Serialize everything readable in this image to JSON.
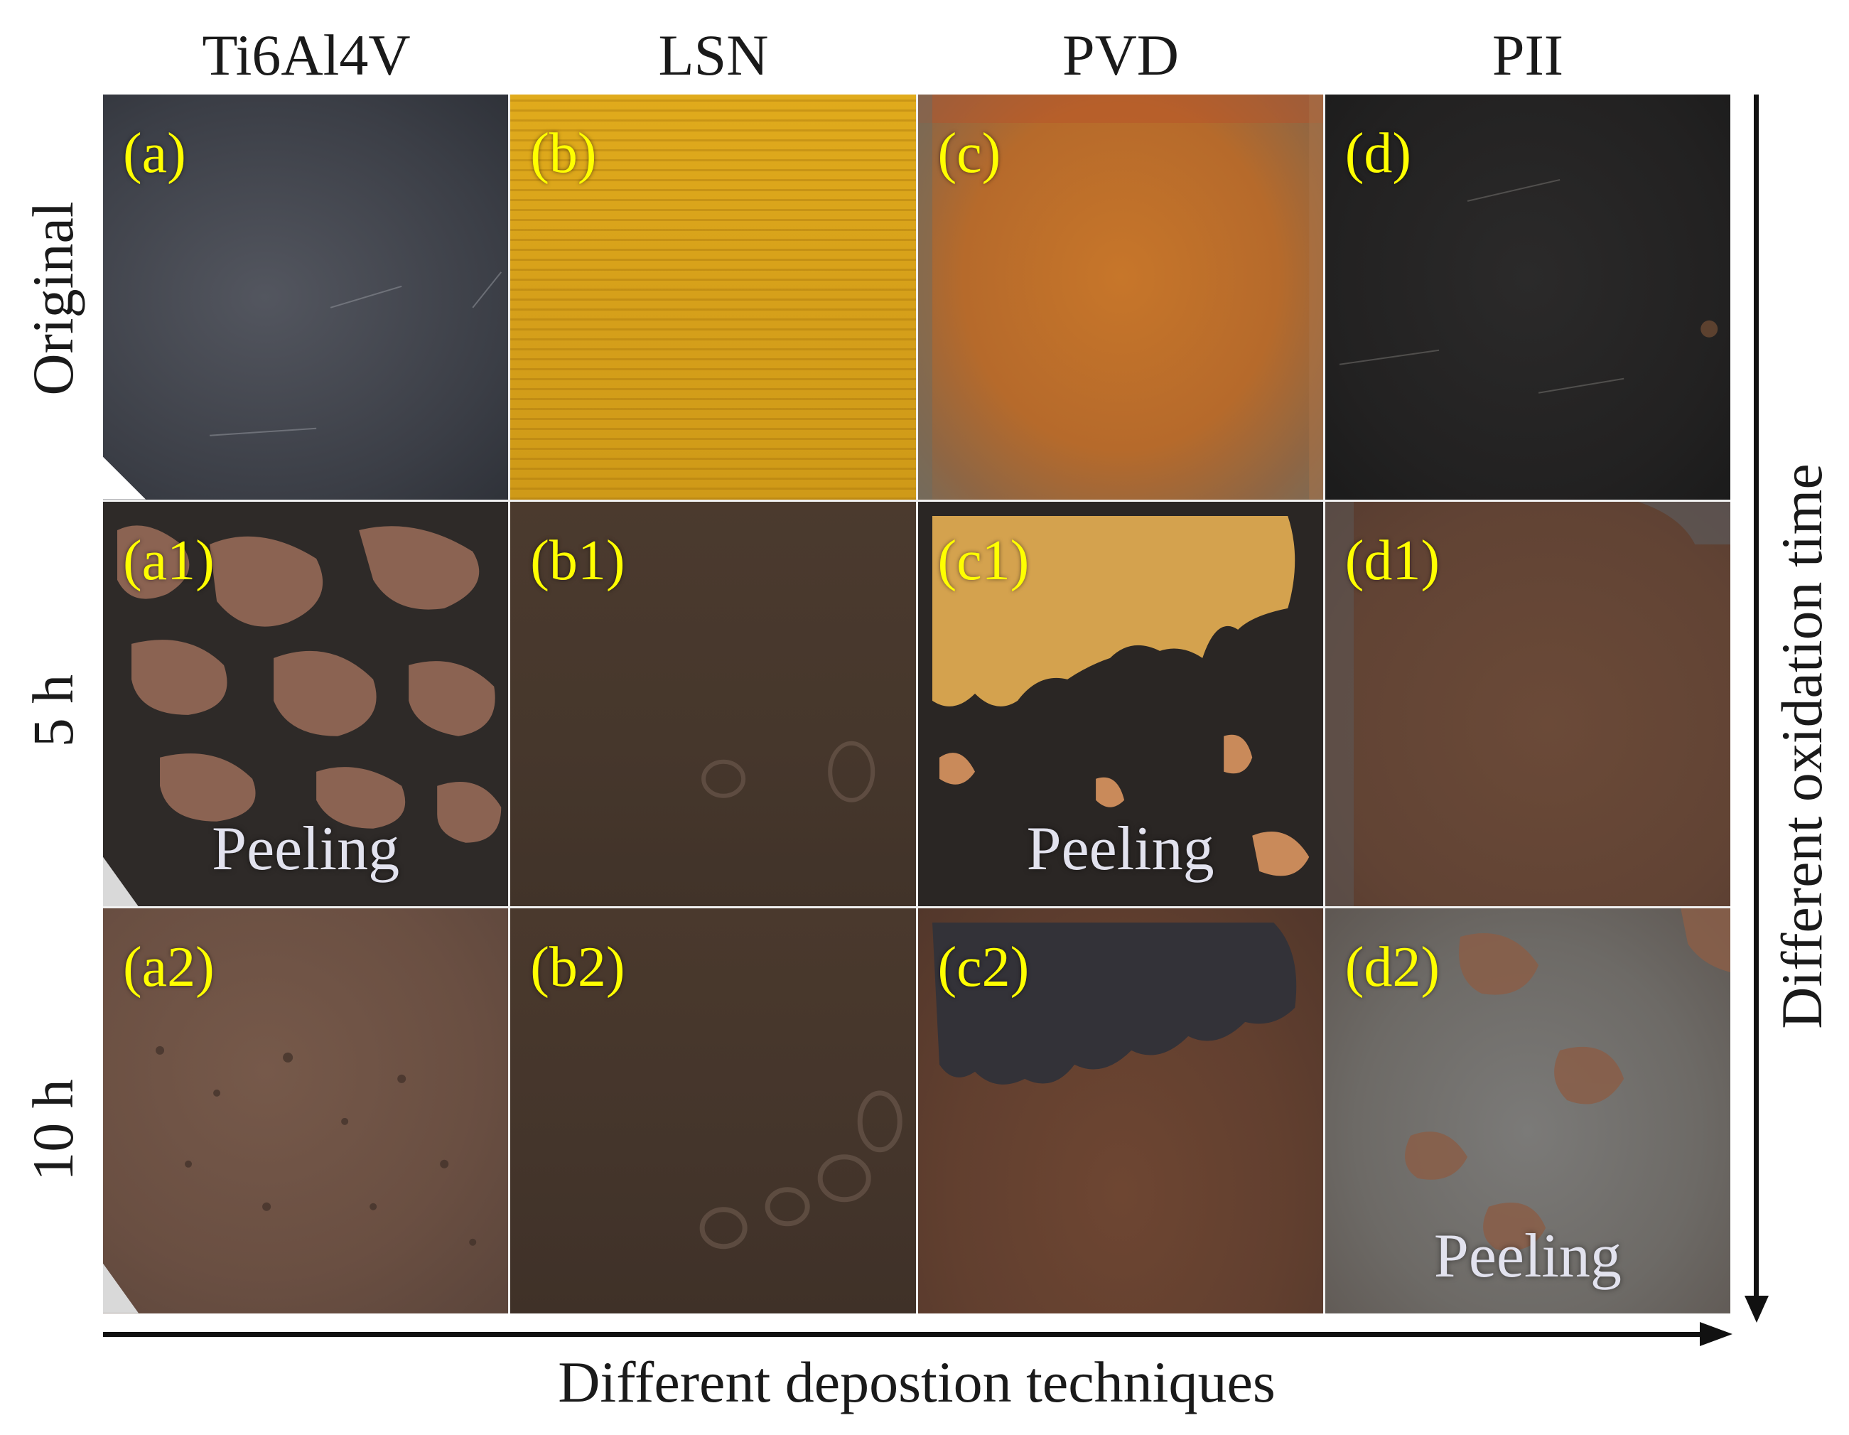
{
  "columns": [
    "Ti6Al4V",
    "LSN",
    "PVD",
    "PII"
  ],
  "rows": [
    "Original",
    "5 h",
    "10 h"
  ],
  "tiles": [
    {
      "label": "(a)",
      "peeling": ""
    },
    {
      "label": "(b)",
      "peeling": ""
    },
    {
      "label": "(c)",
      "peeling": ""
    },
    {
      "label": "(d)",
      "peeling": ""
    },
    {
      "label": "(a1)",
      "peeling": "Peeling"
    },
    {
      "label": "(b1)",
      "peeling": ""
    },
    {
      "label": "(c1)",
      "peeling": "Peeling"
    },
    {
      "label": "(d1)",
      "peeling": ""
    },
    {
      "label": "(a2)",
      "peeling": ""
    },
    {
      "label": "(b2)",
      "peeling": ""
    },
    {
      "label": "(c2)",
      "peeling": ""
    },
    {
      "label": "(d2)",
      "peeling": "Peeling"
    }
  ],
  "x_axis_title": "Different depostion techniques",
  "y_axis_title": "Different oxidation time",
  "colors": {
    "label": "#ffff00",
    "peeling_text": "#e2e2ee",
    "axis": "#111111"
  }
}
